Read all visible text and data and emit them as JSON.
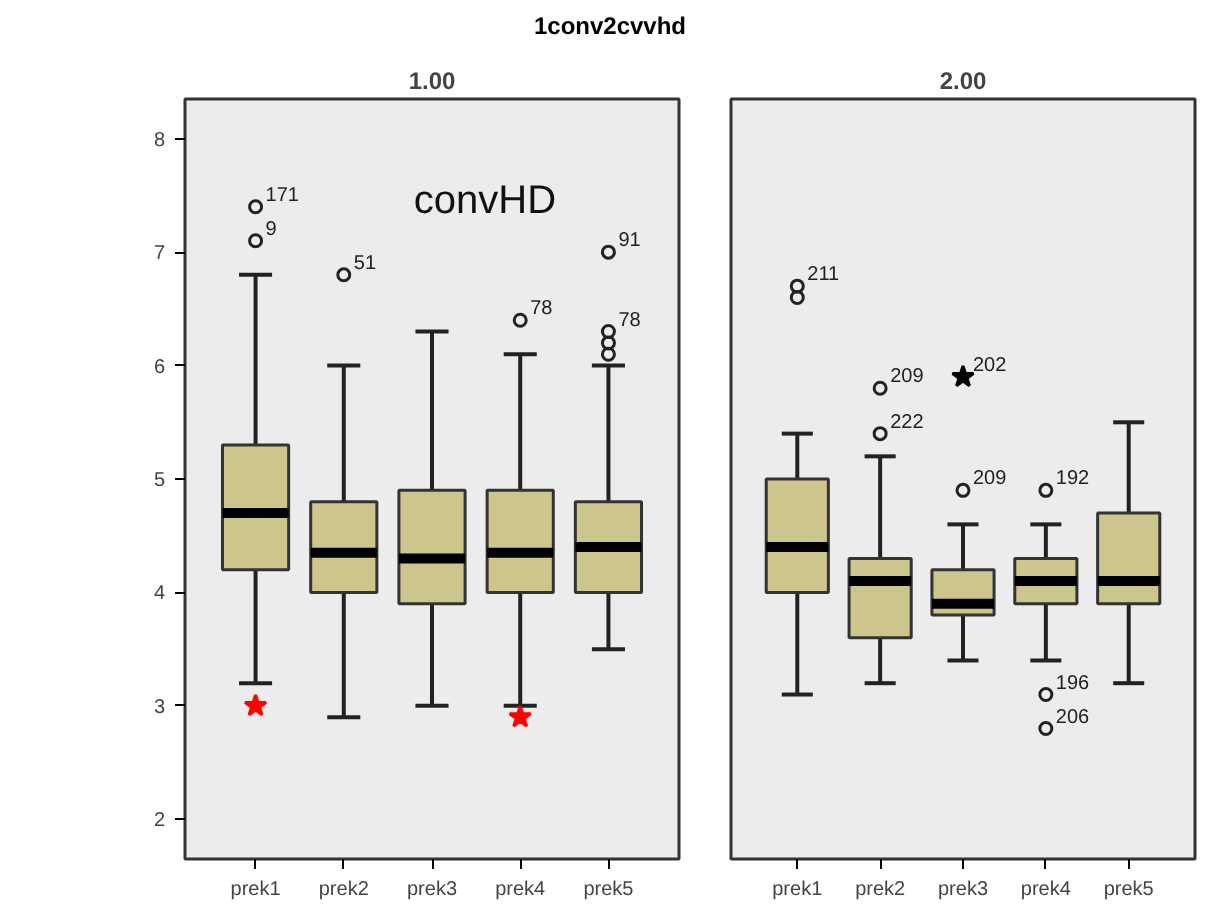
{
  "chart_data": [
    {
      "type": "box",
      "title": "1conv2cvvhd",
      "subtitle": "1.00",
      "categories": [
        "prek1",
        "prek2",
        "prek3",
        "prek4",
        "prek5"
      ],
      "ylim": [
        1.65,
        8.35
      ],
      "yticks": [
        2,
        3,
        4,
        5,
        6,
        7,
        8
      ],
      "series": [
        {
          "type": "box",
          "color": "#ccc68d",
          "boxes": [
            {
              "low": 3.2,
              "q1": 4.2,
              "median": 4.7,
              "q3": 5.3,
              "high": 6.8
            },
            {
              "low": 2.9,
              "q1": 4.0,
              "median": 4.35,
              "q3": 4.8,
              "high": 6.0
            },
            {
              "low": 3.0,
              "q1": 3.9,
              "median": 4.3,
              "q3": 4.9,
              "high": 6.3
            },
            {
              "low": 3.0,
              "q1": 4.0,
              "median": 4.35,
              "q3": 4.9,
              "high": 6.1
            },
            {
              "low": 3.5,
              "q1": 4.0,
              "median": 4.4,
              "q3": 4.8,
              "high": 6.0
            }
          ]
        },
        {
          "type": "scatter",
          "marker": "circle",
          "color": "#222222",
          "x": [
            "prek1",
            "prek1",
            "prek2",
            "prek4",
            "prek5",
            "prek5",
            "prek5",
            "prek5"
          ],
          "values": [
            7.4,
            7.1,
            6.8,
            6.4,
            7.0,
            6.3,
            6.2,
            6.1
          ]
        },
        {
          "type": "scatter",
          "marker": "star",
          "color": "#ff0000",
          "x": [
            "prek1",
            "prek4"
          ],
          "values": [
            3.0,
            2.9
          ]
        }
      ],
      "annotations": [
        "convHD",
        {
          "text": "171",
          "x": "prek1",
          "y": 7.4
        },
        {
          "text": "9",
          "x": "prek1",
          "y": 7.1
        },
        {
          "text": "51",
          "x": "prek2",
          "y": 6.8
        },
        {
          "text": "78",
          "x": "prek4",
          "y": 6.4
        },
        {
          "text": "91",
          "x": "prek5",
          "y": 7.0
        },
        {
          "text": "78",
          "x": "prek5",
          "y": 6.3
        }
      ]
    },
    {
      "type": "box",
      "subtitle": "2.00",
      "categories": [
        "prek1",
        "prek2",
        "prek3",
        "prek4",
        "prek5"
      ],
      "ylim": [
        1.65,
        8.35
      ],
      "yticks": [
        2,
        3,
        4,
        5,
        6,
        7,
        8
      ],
      "tick_labels": "x",
      "series": [
        {
          "type": "box",
          "color": "#ccc68d",
          "boxes": [
            {
              "low": 3.1,
              "q1": 4.0,
              "median": 4.4,
              "q3": 5.0,
              "high": 5.4
            },
            {
              "low": 3.2,
              "q1": 3.6,
              "median": 4.1,
              "q3": 4.3,
              "high": 5.2
            },
            {
              "low": 3.4,
              "q1": 3.8,
              "median": 3.9,
              "q3": 4.2,
              "high": 4.6
            },
            {
              "low": 3.4,
              "q1": 3.9,
              "median": 4.1,
              "q3": 4.3,
              "high": 4.6
            },
            {
              "low": 3.2,
              "q1": 3.9,
              "median": 4.1,
              "q3": 4.7,
              "high": 5.5
            }
          ]
        },
        {
          "type": "scatter",
          "marker": "circle",
          "color": "#222222",
          "x": [
            "prek1",
            "prek1",
            "prek2",
            "prek2",
            "prek3",
            "prek4",
            "prek4",
            "prek4"
          ],
          "values": [
            6.7,
            6.6,
            5.8,
            5.4,
            4.9,
            4.9,
            3.1,
            2.8
          ]
        },
        {
          "type": "scatter",
          "marker": "star",
          "color": "#000000",
          "x": [
            "prek3"
          ],
          "values": [
            5.9
          ]
        }
      ],
      "annotations": [
        {
          "text": "211",
          "x": "prek1",
          "y": 6.7
        },
        {
          "text": "209",
          "x": "prek2",
          "y": 5.8
        },
        {
          "text": "222",
          "x": "prek2",
          "y": 5.4
        },
        {
          "text": "202",
          "x": "prek3",
          "y": 5.9
        },
        {
          "text": "209",
          "x": "prek3",
          "y": 4.9
        },
        {
          "text": "192",
          "x": "prek4",
          "y": 4.9
        },
        {
          "text": "196",
          "x": "prek4",
          "y": 3.1
        },
        {
          "text": "206",
          "x": "prek4",
          "y": 2.8
        }
      ]
    }
  ]
}
